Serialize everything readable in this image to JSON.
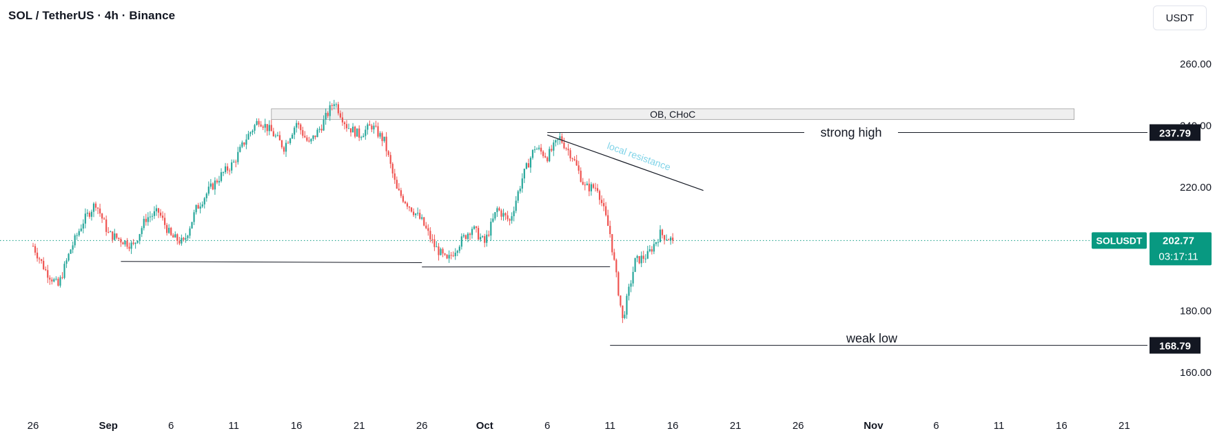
{
  "header": {
    "title": "SOL / TetherUS · 4h · Binance",
    "currency_button": "USDT"
  },
  "chart_data": {
    "type": "candlestick",
    "symbol": "SOLUSDT",
    "y_ticks": [
      "260.00",
      "240.00",
      "220.00",
      "180.00",
      "160.00"
    ],
    "y_range": [
      156,
      266
    ],
    "x_ticks": [
      "26",
      "Sep",
      "6",
      "11",
      "16",
      "21",
      "26",
      "Oct",
      "6",
      "11",
      "16",
      "21",
      "26",
      "Nov",
      "6",
      "11",
      "16",
      "21"
    ],
    "x_tick_dates": [
      "Aug 26",
      "Sep 1",
      "Sep 6",
      "Sep 11",
      "Sep 16",
      "Sep 21",
      "Sep 26",
      "Oct 1",
      "Oct 6",
      "Oct 11",
      "Oct 16",
      "Oct 21",
      "Oct 26",
      "Nov 1",
      "Nov 6",
      "Nov 11",
      "Nov 16",
      "Nov 21"
    ],
    "price_path": [
      [
        "Aug 26",
        201
      ],
      [
        "Aug 27",
        193
      ],
      [
        "Aug 28",
        188
      ],
      [
        "Aug 29",
        200
      ],
      [
        "Aug 30",
        209
      ],
      [
        "Aug 31",
        215
      ],
      [
        "Sep 1",
        205
      ],
      [
        "Sep 2",
        203
      ],
      [
        "Sep 3",
        201
      ],
      [
        "Sep 4",
        210
      ],
      [
        "Sep 5",
        212
      ],
      [
        "Sep 6",
        204
      ],
      [
        "Sep 7",
        202
      ],
      [
        "Sep 8",
        213
      ],
      [
        "Sep 9",
        219
      ],
      [
        "Sep 10",
        224
      ],
      [
        "Sep 11",
        228
      ],
      [
        "Sep 12",
        236
      ],
      [
        "Sep 13",
        242
      ],
      [
        "Sep 14",
        238
      ],
      [
        "Sep 15",
        233
      ],
      [
        "Sep 16",
        241
      ],
      [
        "Sep 17",
        234
      ],
      [
        "Sep 18",
        240
      ],
      [
        "Sep 19",
        248
      ],
      [
        "Sep 20",
        240
      ],
      [
        "Sep 21",
        237
      ],
      [
        "Sep 22",
        240
      ],
      [
        "Sep 23",
        235
      ],
      [
        "Sep 24",
        219
      ],
      [
        "Sep 25",
        214
      ],
      [
        "Sep 26",
        209
      ],
      [
        "Sep 27",
        201
      ],
      [
        "Sep 28",
        196
      ],
      [
        "Sep 29",
        202
      ],
      [
        "Sep 30",
        207
      ],
      [
        "Oct 1",
        202
      ],
      [
        "Oct 2",
        213
      ],
      [
        "Oct 3",
        209
      ],
      [
        "Oct 4",
        223
      ],
      [
        "Oct 5",
        233
      ],
      [
        "Oct 6",
        230
      ],
      [
        "Oct 7",
        236
      ],
      [
        "Oct 8",
        230
      ],
      [
        "Oct 9",
        220
      ],
      [
        "Oct 10",
        220
      ],
      [
        "Oct 11",
        205
      ],
      [
        "Oct 12",
        177
      ],
      [
        "Oct 13",
        196
      ],
      [
        "Oct 14",
        198
      ],
      [
        "Oct 15",
        205
      ],
      [
        "Oct 16",
        202.77
      ]
    ],
    "current_price": 202.77,
    "current_price_label": "202.77",
    "countdown": "03:17:11",
    "price_tag_label": "SOLUSDT",
    "annotations": {
      "ob_zone": {
        "label": "OB, CHoC",
        "top": 245.5,
        "bottom": 242.0,
        "from": "Sep 14",
        "to": "Nov 17"
      },
      "strong_high": {
        "label": "strong high",
        "value": 237.79,
        "value_label": "237.79",
        "from": "Oct 6"
      },
      "weak_low": {
        "label": "weak low",
        "value": 168.79,
        "value_label": "168.79",
        "from": "Oct 11"
      },
      "local_resistance": {
        "label": "local resistance",
        "from": [
          "Oct 6",
          237
        ],
        "to": [
          "Oct 18",
          219
        ]
      },
      "support_lines": [
        {
          "from": [
            "Sep 2",
            196.0
          ],
          "to": [
            "Sep 26",
            195.6
          ]
        },
        {
          "from": [
            "Sep 26",
            194.2
          ],
          "to": [
            "Oct 11",
            194.3
          ]
        }
      ]
    },
    "colors": {
      "up": "#26a69a",
      "down": "#ef5350",
      "price_tag": "#089981",
      "tag_dark": "#131722",
      "resistance_text": "#7fd3e8"
    }
  }
}
